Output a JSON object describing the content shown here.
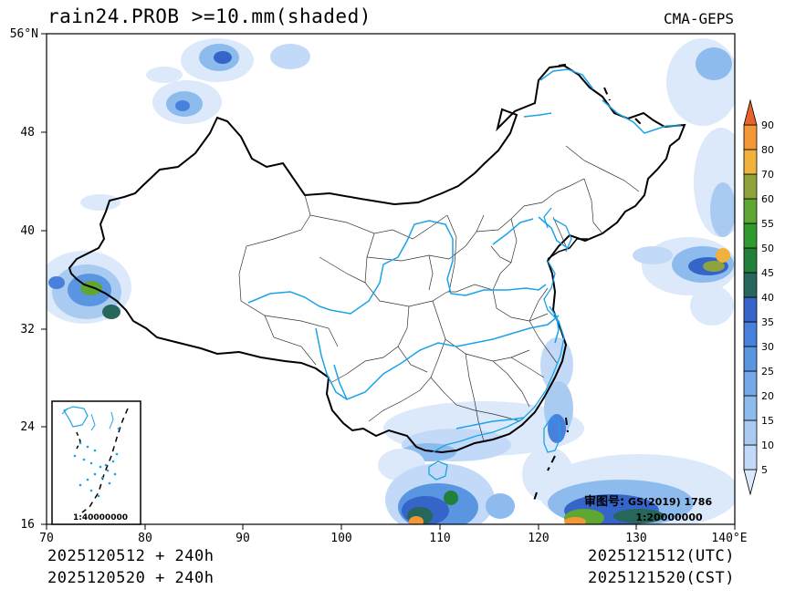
{
  "title": "rain24.PROB >=10.mm(shaded)",
  "source": "CMA-GEPS",
  "axes": {
    "lat_labels": [
      "56°N",
      "48",
      "40",
      "32",
      "24",
      "16"
    ],
    "lon_labels": [
      "70",
      "80",
      "90",
      "100",
      "110",
      "120",
      "130",
      "140°E"
    ]
  },
  "colorbar": {
    "levels": [
      "5",
      "10",
      "15",
      "20",
      "25",
      "30",
      "35",
      "40",
      "45",
      "50",
      "55",
      "60",
      "70",
      "80",
      "90"
    ],
    "colors": [
      "#dbe9fb",
      "#c2daf7",
      "#a9cbf2",
      "#8ebbee",
      "#73a9e9",
      "#5a95e2",
      "#4781dc",
      "#3565c9",
      "#27665a",
      "#23803a",
      "#2f9a30",
      "#5da732",
      "#8fa33c",
      "#f0b23c",
      "#f39737",
      "#e8632a"
    ]
  },
  "approval": {
    "label": "审图号:",
    "code": "GS(2019) 1786",
    "scale": "1:20000000"
  },
  "inset": {
    "scale": "1:40000000"
  },
  "footer": {
    "left_line1": "2025120512 + 240h",
    "left_line2": "2025120520 + 240h",
    "right_line1": "2025121512(UTC)",
    "right_line2": "2025121520(CST)"
  }
}
